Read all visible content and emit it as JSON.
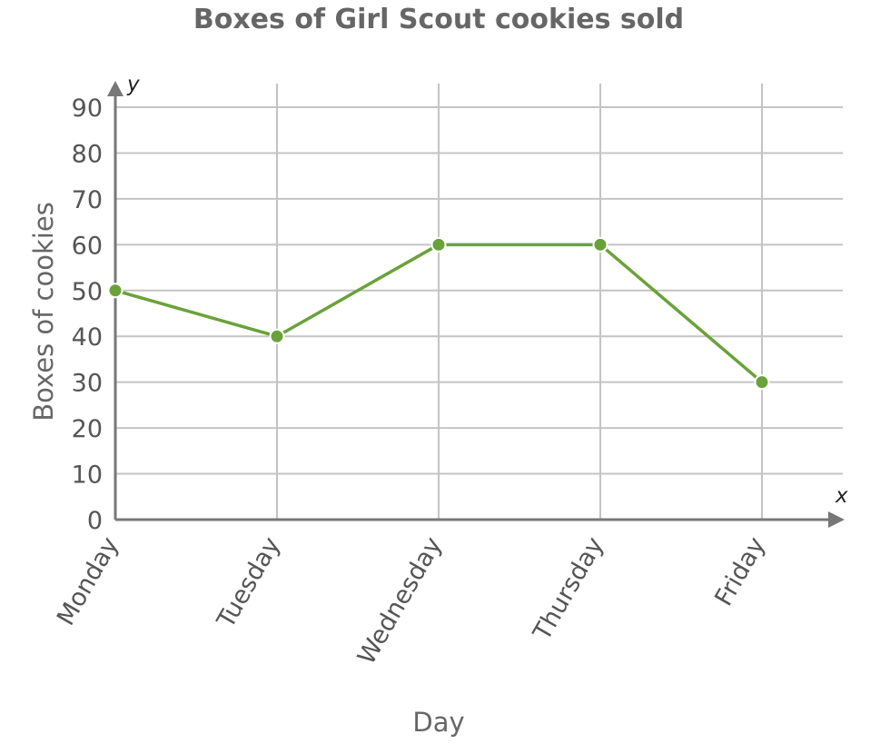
{
  "chart_data": {
    "type": "line",
    "title": "Boxes of Girl Scout cookies sold",
    "xlabel": "Day",
    "ylabel": "Boxes of cookies",
    "x_axis_letter": "x",
    "y_axis_letter": "y",
    "categories": [
      "Monday",
      "Tuesday",
      "Wednesday",
      "Thursday",
      "Friday"
    ],
    "series": [
      {
        "values": [
          50,
          40,
          60,
          60,
          30
        ],
        "color": "#6aa23a"
      }
    ],
    "ylim": [
      0,
      90
    ],
    "yticks": [
      0,
      10,
      20,
      30,
      40,
      50,
      60,
      70,
      80,
      90
    ],
    "grid": true,
    "legend": "none"
  }
}
